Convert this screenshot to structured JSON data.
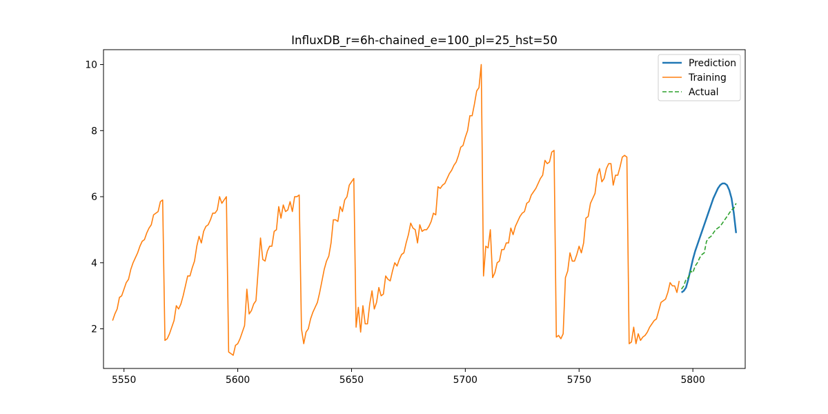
{
  "chart_data": {
    "type": "line",
    "title": "InfluxDB_r=6h-chained_e=100_pl=25_hst=50",
    "xlabel": "",
    "ylabel": "",
    "xlim": [
      5541,
      5823
    ],
    "ylim": [
      0.8,
      10.45
    ],
    "xticks": [
      5550,
      5600,
      5650,
      5700,
      5750,
      5800
    ],
    "yticks": [
      2,
      4,
      6,
      8,
      10
    ],
    "grid": false,
    "legend_position": "upper right",
    "series": [
      {
        "name": "Prediction",
        "color": "#1f77b4",
        "style": "solid",
        "x": [
          5795,
          5796,
          5797,
          5798,
          5799,
          5800,
          5801,
          5802,
          5803,
          5804,
          5805,
          5806,
          5807,
          5808,
          5809,
          5810,
          5811,
          5812,
          5813,
          5814,
          5815,
          5816,
          5817,
          5818,
          5819
        ],
        "y": [
          3.1,
          3.15,
          3.25,
          3.5,
          3.8,
          4.1,
          4.35,
          4.55,
          4.75,
          4.95,
          5.15,
          5.35,
          5.55,
          5.75,
          5.95,
          6.1,
          6.25,
          6.35,
          6.4,
          6.4,
          6.35,
          6.2,
          5.95,
          5.5,
          4.9
        ]
      },
      {
        "name": "Training",
        "color": "#ff7f0e",
        "style": "solid",
        "x": [
          5545,
          5546,
          5547,
          5548,
          5549,
          5550,
          5551,
          5552,
          5553,
          5554,
          5555,
          5556,
          5557,
          5558,
          5559,
          5560,
          5561,
          5562,
          5563,
          5564,
          5565,
          5566,
          5567,
          5568,
          5569,
          5570,
          5571,
          5572,
          5573,
          5574,
          5575,
          5576,
          5577,
          5578,
          5579,
          5580,
          5581,
          5582,
          5583,
          5584,
          5585,
          5586,
          5587,
          5588,
          5589,
          5590,
          5591,
          5592,
          5593,
          5594,
          5595,
          5596,
          5597,
          5598,
          5599,
          5600,
          5601,
          5602,
          5603,
          5604,
          5605,
          5606,
          5607,
          5608,
          5609,
          5610,
          5611,
          5612,
          5613,
          5614,
          5615,
          5616,
          5617,
          5618,
          5619,
          5620,
          5621,
          5622,
          5623,
          5624,
          5625,
          5626,
          5627,
          5628,
          5629,
          5630,
          5631,
          5632,
          5633,
          5634,
          5635,
          5636,
          5637,
          5638,
          5639,
          5640,
          5641,
          5642,
          5643,
          5644,
          5645,
          5646,
          5647,
          5648,
          5649,
          5650,
          5651,
          5652,
          5653,
          5654,
          5655,
          5656,
          5657,
          5658,
          5659,
          5660,
          5661,
          5662,
          5663,
          5664,
          5665,
          5666,
          5667,
          5668,
          5669,
          5670,
          5671,
          5672,
          5673,
          5674,
          5675,
          5676,
          5677,
          5678,
          5679,
          5680,
          5681,
          5682,
          5683,
          5684,
          5685,
          5686,
          5687,
          5688,
          5689,
          5690,
          5691,
          5692,
          5693,
          5694,
          5695,
          5696,
          5697,
          5698,
          5699,
          5700,
          5701,
          5702,
          5703,
          5704,
          5705,
          5706,
          5707,
          5708,
          5709,
          5710,
          5711,
          5712,
          5713,
          5714,
          5715,
          5716,
          5717,
          5718,
          5719,
          5720,
          5721,
          5722,
          5723,
          5724,
          5725,
          5726,
          5727,
          5728,
          5729,
          5730,
          5731,
          5732,
          5733,
          5734,
          5735,
          5736,
          5737,
          5738,
          5739,
          5740,
          5741,
          5742,
          5743,
          5744,
          5745,
          5746,
          5747,
          5748,
          5749,
          5750,
          5751,
          5752,
          5753,
          5754,
          5755,
          5756,
          5757,
          5758,
          5759,
          5760,
          5761,
          5762,
          5763,
          5764,
          5765,
          5766,
          5767,
          5768,
          5769,
          5770,
          5771,
          5772,
          5773,
          5774,
          5775,
          5776,
          5777,
          5778,
          5779,
          5780,
          5781,
          5782,
          5783,
          5784,
          5785,
          5786,
          5787,
          5788,
          5789,
          5790,
          5791,
          5792,
          5793,
          5794
        ],
        "y": [
          2.25,
          2.45,
          2.6,
          2.95,
          3.0,
          3.2,
          3.4,
          3.5,
          3.8,
          4.0,
          4.15,
          4.3,
          4.5,
          4.65,
          4.7,
          4.9,
          5.05,
          5.15,
          5.45,
          5.5,
          5.55,
          5.85,
          5.9,
          1.65,
          1.7,
          1.85,
          2.05,
          2.25,
          2.7,
          2.6,
          2.75,
          3.0,
          3.3,
          3.6,
          3.6,
          3.85,
          4.05,
          4.5,
          4.8,
          4.6,
          4.95,
          5.1,
          5.15,
          5.3,
          5.5,
          5.5,
          5.6,
          6.0,
          5.8,
          5.9,
          6.0,
          1.3,
          1.25,
          1.2,
          1.5,
          1.55,
          1.7,
          1.9,
          2.1,
          3.2,
          2.45,
          2.55,
          2.75,
          2.85,
          3.8,
          4.75,
          4.1,
          4.05,
          4.35,
          4.5,
          4.5,
          4.95,
          5.0,
          5.7,
          5.35,
          5.75,
          5.55,
          5.6,
          5.85,
          5.55,
          6.0,
          6.0,
          6.05,
          2.0,
          1.55,
          1.9,
          2.0,
          2.3,
          2.5,
          2.65,
          2.8,
          3.1,
          3.45,
          3.8,
          4.05,
          4.2,
          4.6,
          5.3,
          5.3,
          5.25,
          5.7,
          5.55,
          5.9,
          6.0,
          6.35,
          6.45,
          6.55,
          2.05,
          2.65,
          1.9,
          2.7,
          2.15,
          2.15,
          2.75,
          3.15,
          2.6,
          2.8,
          3.25,
          3.0,
          3.05,
          3.6,
          3.5,
          3.45,
          3.75,
          4.0,
          3.9,
          4.1,
          4.25,
          4.3,
          4.6,
          4.85,
          5.2,
          5.05,
          5.0,
          4.6,
          5.15,
          4.95,
          5.0,
          5.0,
          5.1,
          5.25,
          5.5,
          5.45,
          6.3,
          6.25,
          6.35,
          6.4,
          6.55,
          6.7,
          6.8,
          6.95,
          7.05,
          7.25,
          7.5,
          7.55,
          7.8,
          8.0,
          8.45,
          8.45,
          8.8,
          9.2,
          9.3,
          10.0,
          3.6,
          4.5,
          4.45,
          5.0,
          3.55,
          3.7,
          4.0,
          4.05,
          4.4,
          4.4,
          4.6,
          4.6,
          5.05,
          4.85,
          5.1,
          5.25,
          5.4,
          5.5,
          5.55,
          5.8,
          5.85,
          6.05,
          6.15,
          6.25,
          6.4,
          6.55,
          6.65,
          7.1,
          7.0,
          7.05,
          7.35,
          7.4,
          1.75,
          1.8,
          1.7,
          1.85,
          3.55,
          3.75,
          4.3,
          4.05,
          4.05,
          4.25,
          4.5,
          4.3,
          4.6,
          5.35,
          5.4,
          5.8,
          5.95,
          6.1,
          6.65,
          6.85,
          6.45,
          6.55,
          6.85,
          7.0,
          7.0,
          6.35,
          6.65,
          6.65,
          6.9,
          7.2,
          7.25,
          7.2,
          1.55,
          1.6,
          2.05,
          1.55,
          1.85,
          1.65,
          1.75,
          1.8,
          1.9,
          2.05,
          2.15,
          2.25,
          2.3,
          2.55,
          2.8,
          2.85,
          2.9,
          3.1,
          3.4,
          3.3,
          3.3,
          3.1,
          3.45
        ]
      },
      {
        "name": "Actual",
        "color": "#2ca02c",
        "style": "dashed",
        "x": [
          5795,
          5796,
          5797,
          5798,
          5799,
          5800,
          5801,
          5802,
          5803,
          5804,
          5805,
          5806,
          5807,
          5808,
          5809,
          5810,
          5811,
          5812,
          5813,
          5814,
          5815,
          5816,
          5817,
          5818,
          5819
        ],
        "y": [
          3.2,
          3.3,
          3.5,
          3.55,
          3.75,
          3.7,
          3.9,
          4.0,
          4.15,
          4.25,
          4.3,
          4.65,
          4.75,
          4.8,
          4.9,
          5.0,
          5.05,
          5.1,
          5.2,
          5.3,
          5.4,
          5.5,
          5.6,
          5.65,
          5.8
        ]
      }
    ]
  }
}
